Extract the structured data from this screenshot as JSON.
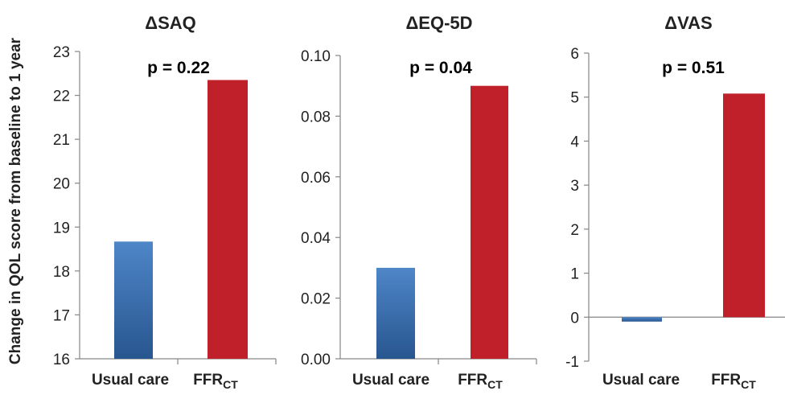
{
  "figure": {
    "ylabel": "Change in QOL score from baseline to 1 year"
  },
  "colors": {
    "usual_care": "#2F66A8",
    "ffrct": "#C0202A",
    "axis": "#868686",
    "text": "#222222"
  },
  "chart_data": [
    {
      "type": "bar",
      "title": "ΔSAQ",
      "annotation": "p = 0.22",
      "categories": [
        {
          "main": "Usual care",
          "sub": ""
        },
        {
          "main": "FFR",
          "sub": "CT"
        }
      ],
      "values": [
        18.67,
        22.35
      ],
      "ylim": [
        16,
        23
      ],
      "yticks": [
        "16",
        "17",
        "18",
        "19",
        "20",
        "21",
        "22",
        "23"
      ],
      "grid": false
    },
    {
      "type": "bar",
      "title": "ΔEQ-5D",
      "annotation": "p = 0.04",
      "categories": [
        {
          "main": "Usual care",
          "sub": ""
        },
        {
          "main": "FFR",
          "sub": "CT"
        }
      ],
      "values": [
        0.03,
        0.09
      ],
      "ylim": [
        0,
        0.1
      ],
      "yticks": [
        "0.00",
        "0.02",
        "0.04",
        "0.06",
        "0.08",
        "0.10"
      ],
      "grid": false
    },
    {
      "type": "bar",
      "title": "ΔVAS",
      "annotation": "p = 0.51",
      "categories": [
        {
          "main": "Usual care",
          "sub": ""
        },
        {
          "main": "FFR",
          "sub": "CT"
        }
      ],
      "values": [
        -0.1,
        5.08
      ],
      "ylim": [
        -1,
        6
      ],
      "yticks": [
        "-1",
        "0",
        "1",
        "2",
        "3",
        "4",
        "5",
        "6"
      ],
      "grid": false
    }
  ]
}
